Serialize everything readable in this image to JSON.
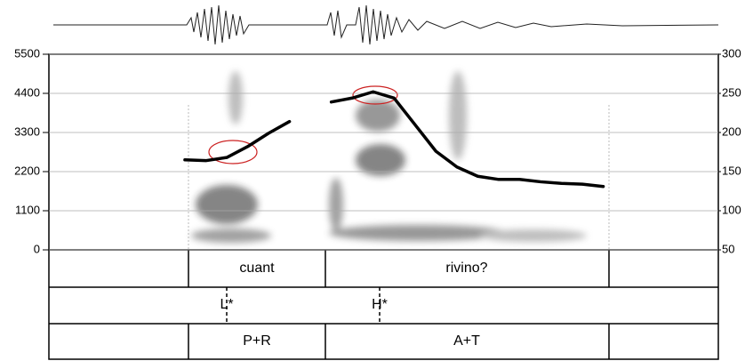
{
  "chart_data": {
    "type": "line",
    "categories": [
      null,
      null,
      null,
      null,
      null,
      null,
      null,
      null,
      null,
      null,
      null,
      null,
      null,
      null,
      null,
      null,
      null,
      null,
      null,
      null,
      null,
      null,
      null,
      null,
      null,
      null,
      null,
      null,
      null,
      null,
      null,
      null
    ],
    "series": [
      {
        "name": null,
        "color": "#000000",
        "axis": "y2",
        "values": [
          null,
          null,
          null,
          null,
          null,
          null,
          165,
          164,
          168,
          182,
          199,
          214,
          null,
          239,
          244,
          252,
          244,
          210,
          176,
          156,
          144,
          140,
          140,
          137,
          135,
          134,
          131,
          null,
          null,
          null,
          null,
          null
        ]
      }
    ],
    "ylim": [
      0,
      5500
    ],
    "yticks": [
      0,
      1100,
      2200,
      3300,
      4400,
      5500
    ],
    "y2lim": [
      50,
      300
    ],
    "y2ticks": [
      50,
      100,
      150,
      200,
      250,
      300
    ],
    "grid": true,
    "annotations": [
      "cuant",
      "rivino?",
      "L*",
      "H*",
      "P+R",
      "A+T"
    ]
  }
}
